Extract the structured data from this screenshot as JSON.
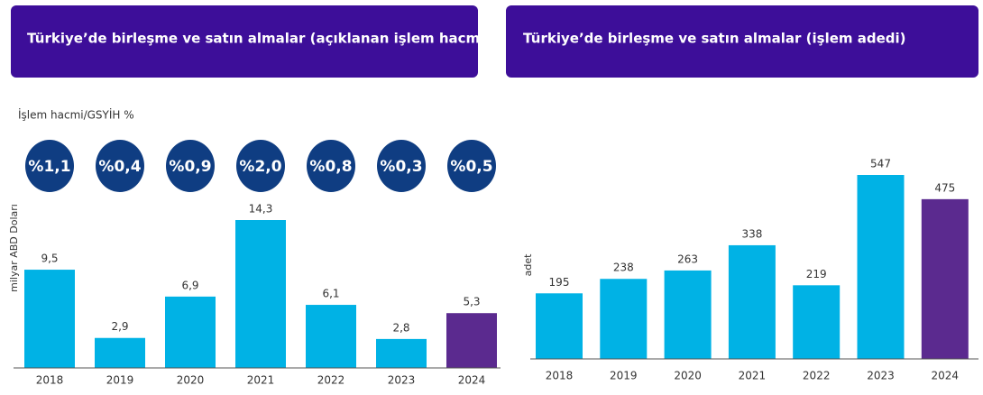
{
  "chart_data": [
    {
      "type": "bar",
      "title": "Türkiye’de birleşme ve satın almalar (açıklanan işlem hacmi)",
      "y_label": "milyar ABD Doları",
      "categories": [
        "2018",
        "2019",
        "2020",
        "2021",
        "2022",
        "2023",
        "2024"
      ],
      "values": [
        9.5,
        2.9,
        6.9,
        14.3,
        6.1,
        2.8,
        5.3
      ],
      "value_labels": [
        "9,5",
        "2,9",
        "6,9",
        "14,3",
        "6,1",
        "2,8",
        "5,3"
      ],
      "colors": [
        "#00b2e5",
        "#00b2e5",
        "#00b2e5",
        "#00b2e5",
        "#00b2e5",
        "#00b2e5",
        "#5b2a8f"
      ],
      "gdp_ratio": {
        "title": "İşlem hacmi/GSYİH %",
        "values": [
          1.1,
          0.4,
          0.9,
          2.0,
          0.8,
          0.3,
          0.5
        ],
        "value_labels": [
          "%1,1",
          "%0,4",
          "%0,9",
          "%2,0",
          "%0,8",
          "%0,3",
          "%0,5"
        ],
        "color": "#0f3d82"
      }
    },
    {
      "type": "bar",
      "title": "Türkiye’de birleşme ve satın almalar (işlem adedi)",
      "y_label": "adet",
      "categories": [
        "2018",
        "2019",
        "2020",
        "2021",
        "2022",
        "2023",
        "2024"
      ],
      "values": [
        195,
        238,
        263,
        338,
        219,
        547,
        475
      ],
      "colors": [
        "#00b2e5",
        "#00b2e5",
        "#00b2e5",
        "#00b2e5",
        "#00b2e5",
        "#00b2e5",
        "#5b2a8f"
      ]
    }
  ]
}
